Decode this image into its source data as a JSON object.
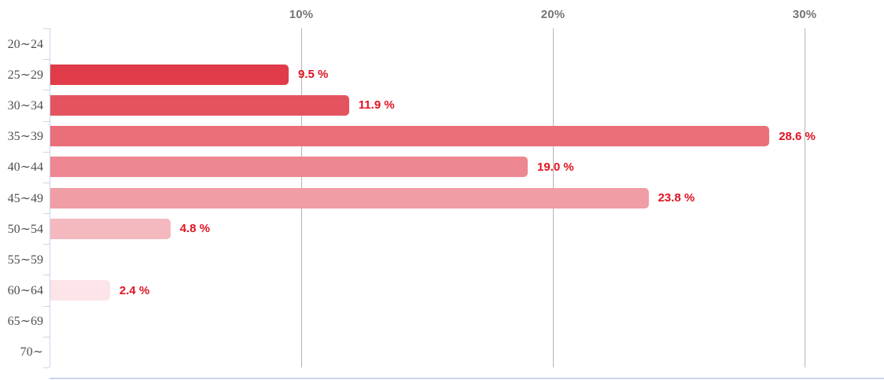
{
  "chart_data": {
    "type": "bar",
    "orientation": "horizontal",
    "title": "",
    "xlabel": "",
    "ylabel": "",
    "categories": [
      "20∼24",
      "25∼29",
      "30∼34",
      "35∼39",
      "40∼44",
      "45∼49",
      "50∼54",
      "55∼59",
      "60∼64",
      "65∼69",
      "70∼"
    ],
    "values": [
      0,
      9.5,
      11.9,
      28.6,
      19.0,
      23.8,
      4.8,
      0,
      2.4,
      0,
      0
    ],
    "value_labels": [
      "",
      "9.5 %",
      "11.9 %",
      "28.6 %",
      "19.0 %",
      "23.8 %",
      "4.8 %",
      "",
      "2.4 %",
      "",
      ""
    ],
    "bar_colors": [
      "",
      "#df3b48",
      "#e4545f",
      "#e96f79",
      "#ed8791",
      "#f09da6",
      "#f4b8bf",
      "",
      "#fce4e8",
      "",
      ""
    ],
    "x_ticks": [
      {
        "label": "10%",
        "value": 10
      },
      {
        "label": "20%",
        "value": 20
      },
      {
        "label": "30%",
        "value": 30
      }
    ],
    "xlim": [
      0,
      33.2
    ],
    "grid": "vertical",
    "legend": "none",
    "colors": {
      "value_label": "#e01322",
      "x_tick_label": "#757575",
      "category_label": "#4f4f4f",
      "axis_line": "#c8d7e8",
      "gridline": "#b5b5b5"
    }
  }
}
